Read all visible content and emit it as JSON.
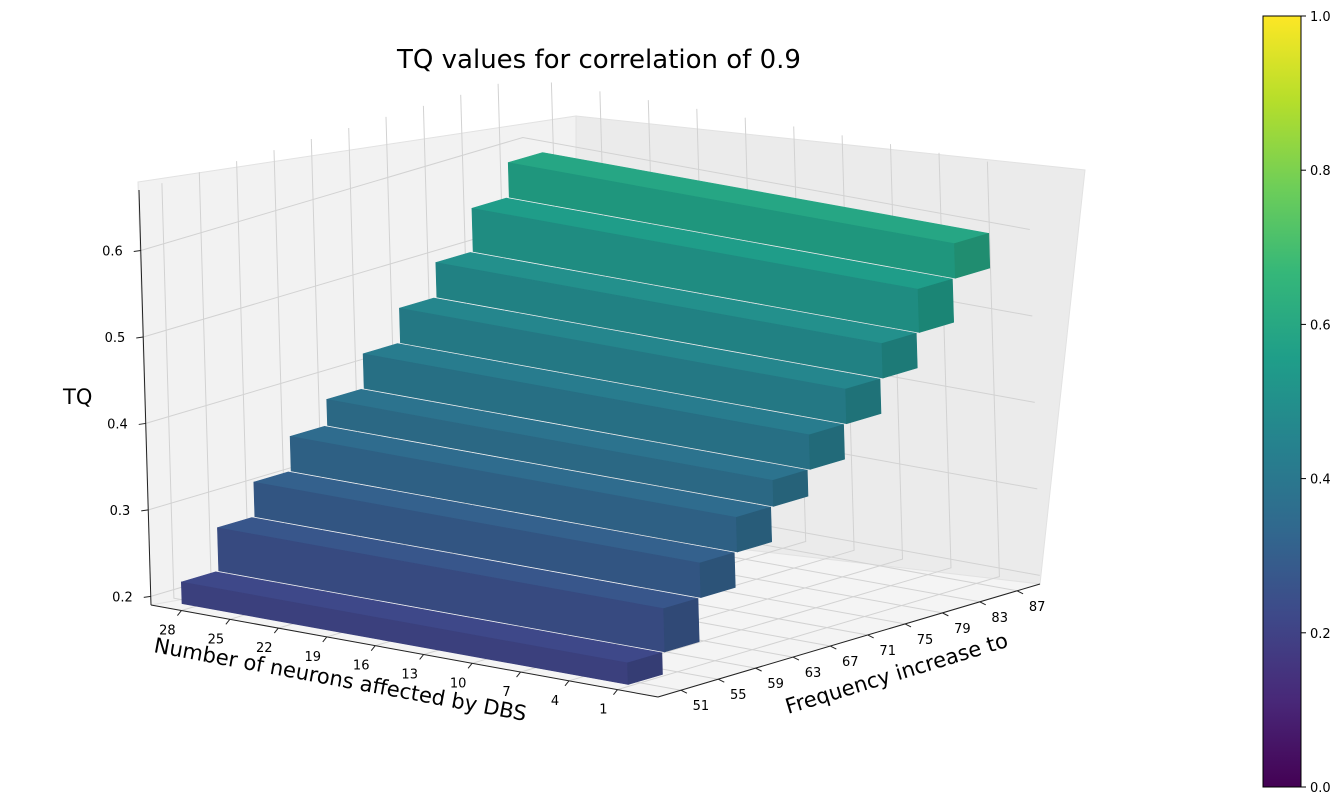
{
  "chart_data": {
    "type": "surface3d",
    "title": "TQ values for correlation of 0.9",
    "xlabel": "Number of neurons affected by DBS",
    "ylabel": "Frequency increase to",
    "zlabel": "TQ",
    "x_ticks": [
      "28",
      "25",
      "22",
      "19",
      "16",
      "13",
      "10",
      "7",
      "4",
      "1"
    ],
    "y_ticks": [
      "51",
      "55",
      "59",
      "63",
      "67",
      "71",
      "75",
      "79",
      "83",
      "87"
    ],
    "z_ticks": [
      "0.2",
      "0.3",
      "0.4",
      "0.5",
      "0.6"
    ],
    "z_range": [
      0.19,
      0.67
    ],
    "colorbar_ticks": [
      "0.0",
      "0.2",
      "0.4",
      "0.6",
      "0.8",
      "1.0"
    ],
    "colorbar_range": [
      0.0,
      1.0
    ],
    "colormap": [
      "#440154",
      "#482878",
      "#3e4989",
      "#31688e",
      "#26828e",
      "#1f9e89",
      "#35b779",
      "#6ece58",
      "#b5de2b",
      "#fde725"
    ],
    "frequency_levels": [
      51,
      55,
      59,
      63,
      67,
      71,
      75,
      79,
      83,
      87
    ],
    "tq_by_frequency": [
      0.22,
      0.27,
      0.31,
      0.35,
      0.38,
      0.42,
      0.46,
      0.5,
      0.55,
      0.59
    ],
    "neuron_counts": [
      1,
      4,
      7,
      10,
      13,
      16,
      19,
      22,
      25,
      28
    ]
  }
}
